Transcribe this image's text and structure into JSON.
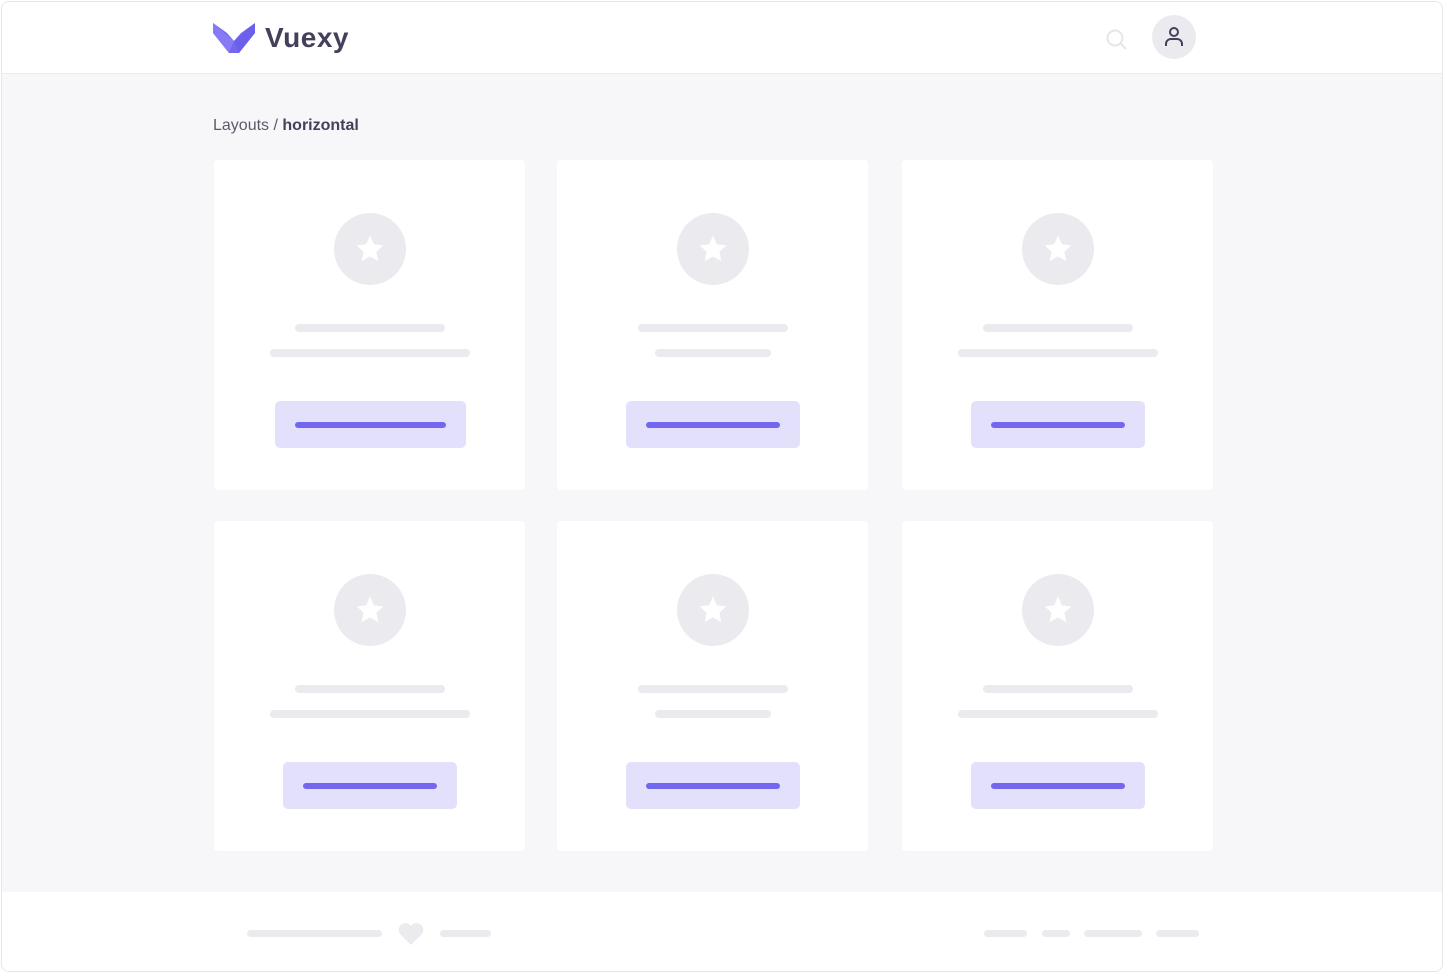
{
  "header": {
    "brand": "Vuexy",
    "logo_icon": "vuexy-logo",
    "search_icon": "search-icon",
    "user_icon": "user-icon"
  },
  "breadcrumb": {
    "parent": "Layouts",
    "separator": " / ",
    "current": "horizontal"
  },
  "cards": {
    "icon": "star-icon"
  },
  "footer": {
    "icon": "heart-icon"
  },
  "colors": {
    "primary": "#7367f0",
    "primary_light": "#e3e0fc",
    "placeholder": "#ebebef",
    "background": "#f7f7f9",
    "text": "#44405a"
  }
}
